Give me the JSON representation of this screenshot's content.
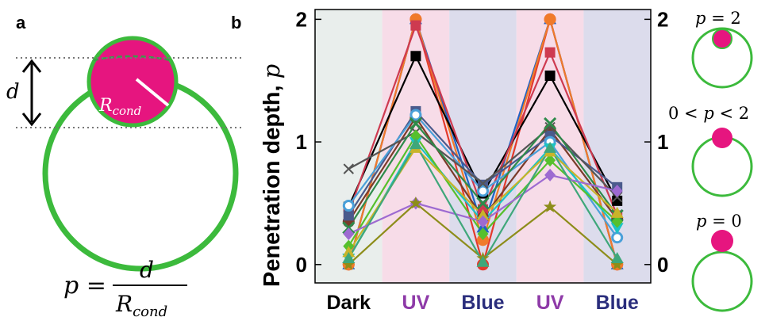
{
  "panel_a": {
    "label": "a",
    "d_label": "d",
    "r_label_main": "R",
    "r_label_sub": "cond",
    "formula_lhs": "p =",
    "formula_num": "d",
    "formula_den_main": "R",
    "formula_den_sub": "cond",
    "colors": {
      "condensate": "#e6157f",
      "vesicle": "#3cba3c"
    }
  },
  "panel_b": {
    "label": "b",
    "ylabel_text": "Penetration depth, ",
    "ylabel_var": "p"
  },
  "chart_data": {
    "type": "line",
    "categories": [
      "Dark",
      "UV",
      "Blue",
      "UV",
      "Blue"
    ],
    "category_colors": [
      "#000000",
      "#8e3aa8",
      "#2a2d7c",
      "#8e3aa8",
      "#2a2d7c"
    ],
    "band_colors": [
      "#e9eeec",
      "#f7dce8",
      "#dcdcec",
      "#f7dce8",
      "#dcdcec"
    ],
    "ylim": [
      -0.15,
      2.08
    ],
    "yticks": [
      "0",
      "1",
      "2"
    ],
    "ytick_values": [
      0,
      1,
      2
    ],
    "series": [
      {
        "color": "#e33a2c",
        "marker": "circle",
        "values": [
          0,
          2,
          0,
          2,
          0
        ]
      },
      {
        "color": "#1f63c4",
        "marker": "triangle",
        "values": [
          0,
          2,
          0.3,
          2,
          0
        ]
      },
      {
        "color": "#f07a2a",
        "marker": "circle",
        "values": [
          0,
          2,
          0.2,
          2,
          0
        ]
      },
      {
        "color": "#000000",
        "marker": "square",
        "values": [
          0.47,
          1.7,
          0.58,
          1.54,
          0.52
        ]
      },
      {
        "color": "#ce3a50",
        "marker": "square",
        "values": [
          0.42,
          1.95,
          0.45,
          1.73,
          0.4
        ]
      },
      {
        "color": "#7a3b2a",
        "marker": "circle",
        "values": [
          0.35,
          1.2,
          0.38,
          1.1,
          0.37
        ]
      },
      {
        "color": "#4a5a8c",
        "marker": "square",
        "values": [
          0.4,
          1.25,
          0.65,
          1.05,
          0.63
        ]
      },
      {
        "color": "#4aa0d9",
        "marker": "circle-open",
        "values": [
          0.48,
          1.22,
          0.6,
          1.0,
          0.22
        ]
      },
      {
        "color": "#555555",
        "marker": "cross",
        "values": [
          0.78,
          1.08,
          0.66,
          1.12,
          0.55
        ]
      },
      {
        "color": "#2e8a4a",
        "marker": "x",
        "values": [
          0.3,
          1.15,
          0.5,
          1.15,
          0.4
        ]
      },
      {
        "color": "#1bc4c4",
        "marker": "triangle-down",
        "values": [
          0.05,
          1.0,
          0.35,
          0.95,
          0.3
        ]
      },
      {
        "color": "#56c02c",
        "marker": "diamond",
        "values": [
          0.15,
          1.05,
          0.25,
          0.85,
          0.35
        ]
      },
      {
        "color": "#c8b42a",
        "marker": "triangle",
        "values": [
          0.1,
          0.95,
          0.4,
          0.92,
          0.42
        ]
      },
      {
        "color": "#9d6ad1",
        "marker": "diamond",
        "values": [
          0.25,
          0.5,
          0.35,
          0.73,
          0.6
        ]
      },
      {
        "color": "#8d8d1a",
        "marker": "star",
        "values": [
          0,
          0.5,
          0.05,
          0.47,
          0
        ]
      },
      {
        "color": "#3fa77a",
        "marker": "triangle",
        "values": [
          0.05,
          0.98,
          0.02,
          0.95,
          0.05
        ]
      }
    ]
  },
  "panel_c": {
    "labels": [
      {
        "var": "p",
        "rest": " = 2"
      },
      {
        "pre": "0 < ",
        "var": "p",
        "rest": " < 2"
      },
      {
        "var": "p",
        "rest": " = 0"
      }
    ],
    "penetration": [
      2,
      1,
      0
    ]
  }
}
